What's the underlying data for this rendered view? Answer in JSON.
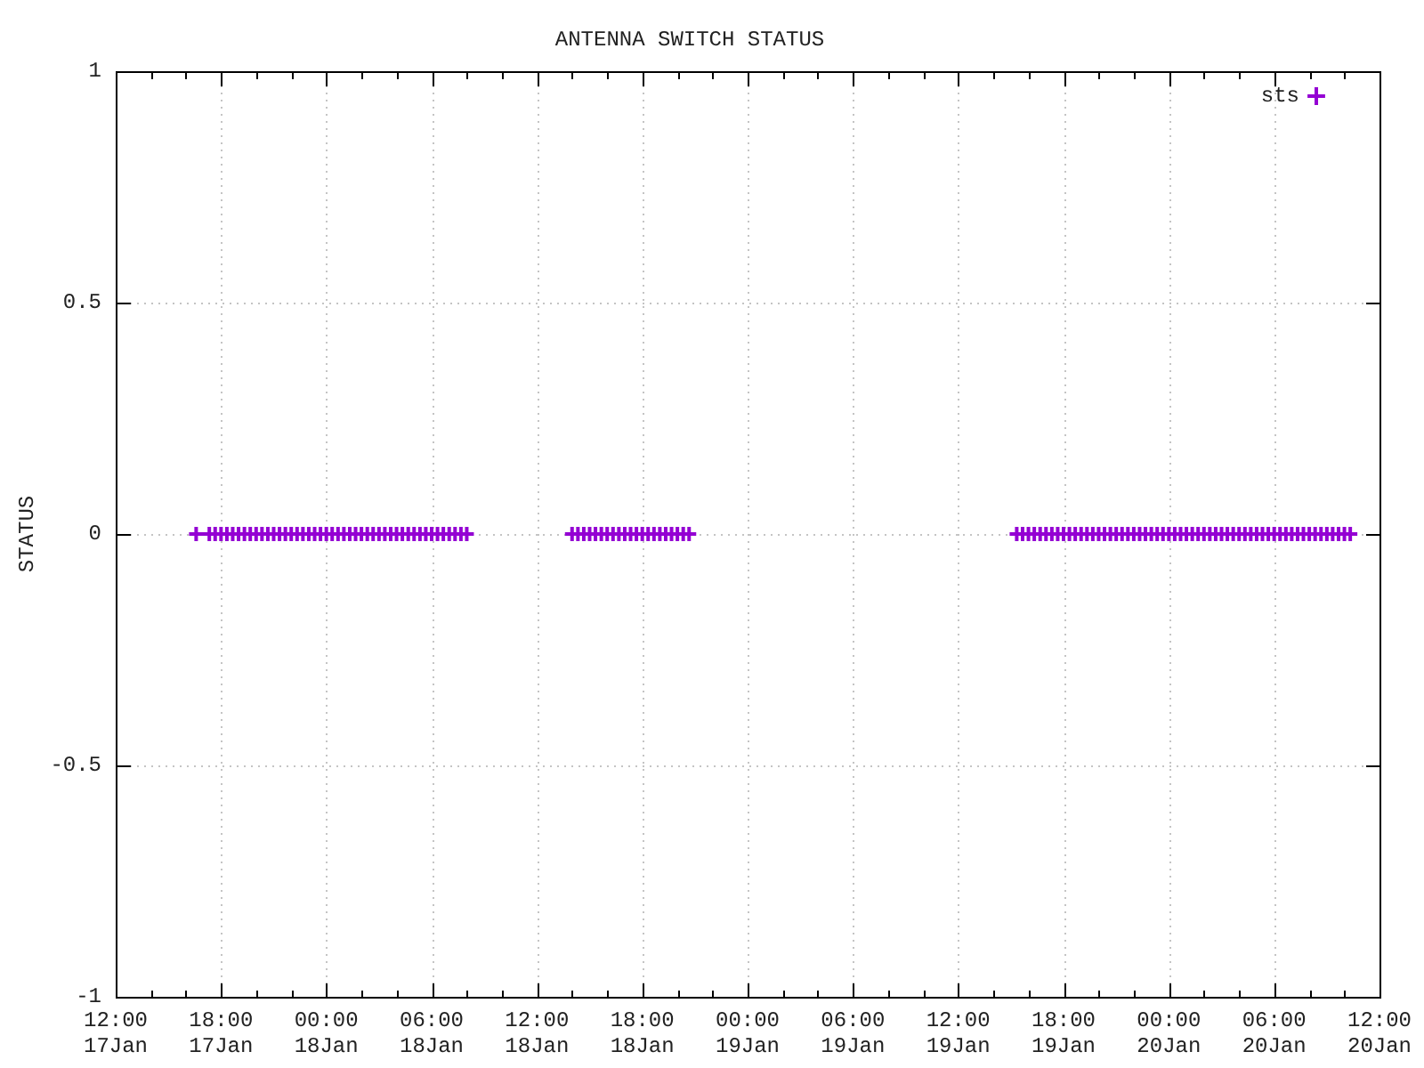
{
  "chart_data": {
    "type": "scatter",
    "title": "ANTENNA SWITCH STATUS",
    "ylabel": "STATUS",
    "marker": "cross",
    "grid": true,
    "legend": "top right",
    "xlim": [
      "--01-17T12:00",
      "--01-20T12:00"
    ],
    "ylim": [
      -1,
      1
    ],
    "yticks": [
      -1,
      -0.5,
      0,
      0.5,
      1
    ],
    "xticks": [
      {
        "value": "--01-17T12:00",
        "label": "12:00\n17Jan"
      },
      {
        "value": "--01-17T14:00",
        "label": null
      },
      {
        "value": "--01-17T16:00",
        "label": null
      },
      {
        "value": "--01-17T18:00",
        "label": "18:00\n17Jan"
      },
      {
        "value": "--01-17T20:00",
        "label": null
      },
      {
        "value": "--01-17T22:00",
        "label": null
      },
      {
        "value": "--01-18T00:00",
        "label": "00:00\n18Jan"
      },
      {
        "value": "--01-18T02:00",
        "label": null
      },
      {
        "value": "--01-18T04:00",
        "label": null
      },
      {
        "value": "--01-18T06:00",
        "label": "06:00\n18Jan"
      },
      {
        "value": "--01-18T08:00",
        "label": null
      },
      {
        "value": "--01-18T10:00",
        "label": null
      },
      {
        "value": "--01-18T12:00",
        "label": "12:00\n18Jan"
      },
      {
        "value": "--01-18T14:00",
        "label": null
      },
      {
        "value": "--01-18T16:00",
        "label": null
      },
      {
        "value": "--01-18T18:00",
        "label": "18:00\n18Jan"
      },
      {
        "value": "--01-18T20:00",
        "label": null
      },
      {
        "value": "--01-18T22:00",
        "label": null
      },
      {
        "value": "--01-19T00:00",
        "label": "00:00\n19Jan"
      },
      {
        "value": "--01-19T02:00",
        "label": null
      },
      {
        "value": "--01-19T04:00",
        "label": null
      },
      {
        "value": "--01-19T06:00",
        "label": "06:00\n19Jan"
      },
      {
        "value": "--01-19T08:00",
        "label": null
      },
      {
        "value": "--01-19T10:00",
        "label": null
      },
      {
        "value": "--01-19T12:00",
        "label": "12:00\n19Jan"
      },
      {
        "value": "--01-19T14:00",
        "label": null
      },
      {
        "value": "--01-19T16:00",
        "label": null
      },
      {
        "value": "--01-19T18:00",
        "label": "18:00\n19Jan"
      },
      {
        "value": "--01-19T20:00",
        "label": null
      },
      {
        "value": "--01-19T22:00",
        "label": null
      },
      {
        "value": "--01-20T00:00",
        "label": "00:00\n20Jan"
      },
      {
        "value": "--01-20T02:00",
        "label": null
      },
      {
        "value": "--01-20T04:00",
        "label": null
      },
      {
        "value": "--01-20T06:00",
        "label": "06:00\n20Jan"
      },
      {
        "value": "--01-20T08:00",
        "label": null
      },
      {
        "value": "--01-20T10:00",
        "label": null
      },
      {
        "value": "--01-20T12:00",
        "label": "12:00\n20Jan"
      }
    ],
    "x": [
      "--01-17T16:35",
      "--01-17T17:20",
      "--01-17T17:40",
      "--01-17T18:00",
      "--01-17T18:20",
      "--01-17T18:40",
      "--01-17T19:00",
      "--01-17T19:20",
      "--01-17T19:40",
      "--01-17T20:00",
      "--01-17T20:20",
      "--01-17T20:40",
      "--01-17T21:00",
      "--01-17T21:20",
      "--01-17T21:40",
      "--01-17T22:00",
      "--01-17T22:20",
      "--01-17T22:40",
      "--01-17T23:00",
      "--01-17T23:20",
      "--01-17T23:40",
      "--01-18T00:00",
      "--01-18T00:20",
      "--01-18T00:40",
      "--01-18T01:00",
      "--01-18T01:20",
      "--01-18T01:40",
      "--01-18T02:00",
      "--01-18T02:20",
      "--01-18T02:40",
      "--01-18T03:00",
      "--01-18T03:20",
      "--01-18T03:40",
      "--01-18T04:00",
      "--01-18T04:20",
      "--01-18T04:40",
      "--01-18T05:00",
      "--01-18T05:20",
      "--01-18T05:40",
      "--01-18T06:00",
      "--01-18T06:20",
      "--01-18T06:40",
      "--01-18T07:00",
      "--01-18T07:20",
      "--01-18T07:40",
      "--01-18T08:00",
      "--01-18T14:00",
      "--01-18T14:20",
      "--01-18T14:40",
      "--01-18T15:00",
      "--01-18T15:20",
      "--01-18T15:40",
      "--01-18T16:00",
      "--01-18T16:20",
      "--01-18T16:40",
      "--01-18T17:00",
      "--01-18T17:20",
      "--01-18T17:40",
      "--01-18T18:00",
      "--01-18T18:20",
      "--01-18T18:40",
      "--01-18T19:00",
      "--01-18T19:20",
      "--01-18T19:40",
      "--01-18T20:00",
      "--01-18T20:20",
      "--01-18T20:40",
      "--01-19T15:20",
      "--01-19T15:40",
      "--01-19T16:00",
      "--01-19T16:20",
      "--01-19T16:40",
      "--01-19T17:00",
      "--01-19T17:20",
      "--01-19T17:40",
      "--01-19T18:00",
      "--01-19T18:20",
      "--01-19T18:40",
      "--01-19T19:00",
      "--01-19T19:20",
      "--01-19T19:40",
      "--01-19T20:00",
      "--01-19T20:20",
      "--01-19T20:40",
      "--01-19T21:00",
      "--01-19T21:20",
      "--01-19T21:40",
      "--01-19T22:00",
      "--01-19T22:20",
      "--01-19T22:40",
      "--01-19T23:00",
      "--01-19T23:20",
      "--01-19T23:40",
      "--01-20T00:00",
      "--01-20T00:20",
      "--01-20T00:40",
      "--01-20T01:00",
      "--01-20T01:20",
      "--01-20T01:40",
      "--01-20T02:00",
      "--01-20T02:20",
      "--01-20T02:40",
      "--01-20T03:00",
      "--01-20T03:20",
      "--01-20T03:40",
      "--01-20T04:00",
      "--01-20T04:20",
      "--01-20T04:40",
      "--01-20T05:00",
      "--01-20T05:20",
      "--01-20T05:40",
      "--01-20T06:00",
      "--01-20T06:20",
      "--01-20T06:40",
      "--01-20T07:00",
      "--01-20T07:20",
      "--01-20T07:40",
      "--01-20T08:00",
      "--01-20T08:20",
      "--01-20T08:40",
      "--01-20T09:00",
      "--01-20T09:20",
      "--01-20T09:40",
      "--01-20T10:00",
      "--01-20T10:20"
    ],
    "series": [
      {
        "name": "sts",
        "color": "#9400d3",
        "values": [
          0,
          0,
          0,
          0,
          0,
          0,
          0,
          0,
          0,
          0,
          0,
          0,
          0,
          0,
          0,
          0,
          0,
          0,
          0,
          0,
          0,
          0,
          0,
          0,
          0,
          0,
          0,
          0,
          0,
          0,
          0,
          0,
          0,
          0,
          0,
          0,
          0,
          0,
          0,
          0,
          0,
          0,
          0,
          0,
          0,
          0,
          0,
          0,
          0,
          0,
          0,
          0,
          0,
          0,
          0,
          0,
          0,
          0,
          0,
          0,
          0,
          0,
          0,
          0,
          0,
          0,
          0,
          0,
          0,
          0,
          0,
          0,
          0,
          0,
          0,
          0,
          0,
          0,
          0,
          0,
          0,
          0,
          0,
          0,
          0,
          0,
          0,
          0,
          0,
          0,
          0,
          0,
          0,
          0,
          0,
          0,
          0,
          0,
          0,
          0,
          0,
          0,
          0,
          0,
          0,
          0,
          0,
          0,
          0,
          0,
          0,
          0,
          0,
          0,
          0,
          0,
          0,
          0,
          0,
          0,
          0,
          0,
          0,
          0,
          0
        ]
      }
    ]
  }
}
